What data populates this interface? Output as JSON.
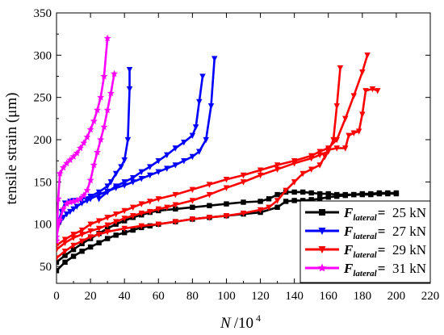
{
  "chart_data": {
    "type": "line",
    "title": "",
    "xlabel": "N",
    "xlabel_suffix": "/10",
    "xlabel_exp": "4",
    "ylabel": "tensile strain (μm)",
    "xlim": [
      0,
      220
    ],
    "ylim": [
      30,
      350
    ],
    "x_ticks": [
      0,
      20,
      40,
      60,
      80,
      100,
      120,
      140,
      160,
      180,
      200,
      220
    ],
    "y_ticks": [
      50,
      100,
      150,
      200,
      250,
      300,
      350
    ],
    "grid": false,
    "legend_position": "lower-right",
    "legend_prefix": "F",
    "legend_sub": "lateral",
    "legend_eq": "=",
    "series": [
      {
        "name": "25 kN",
        "color": "#000000",
        "marker": "square",
        "lines": [
          [
            [
              0,
              45
            ],
            [
              5,
              55
            ],
            [
              10,
              62
            ],
            [
              15,
              68
            ],
            [
              20,
              73
            ],
            [
              25,
              78
            ],
            [
              30,
              83
            ],
            [
              35,
              87
            ],
            [
              40,
              90
            ],
            [
              45,
              93
            ],
            [
              50,
              96
            ],
            [
              55,
              98
            ],
            [
              60,
              100
            ],
            [
              70,
              103
            ],
            [
              80,
              106
            ],
            [
              90,
              108
            ],
            [
              100,
              110
            ],
            [
              110,
              112
            ],
            [
              120,
              114
            ],
            [
              130,
              120
            ],
            [
              135,
              127
            ],
            [
              140,
              128
            ],
            [
              145,
              128
            ],
            [
              150,
              129
            ],
            [
              155,
              130
            ],
            [
              160,
              132
            ],
            [
              165,
              133
            ],
            [
              170,
              134
            ],
            [
              175,
              135
            ],
            [
              180,
              136
            ],
            [
              185,
              136
            ],
            [
              190,
              137
            ],
            [
              195,
              137
            ],
            [
              200,
              137
            ]
          ],
          [
            [
              0,
              55
            ],
            [
              5,
              63
            ],
            [
              10,
              70
            ],
            [
              15,
              77
            ],
            [
              20,
              83
            ],
            [
              25,
              89
            ],
            [
              30,
              95
            ],
            [
              35,
              100
            ],
            [
              40,
              104
            ],
            [
              45,
              108
            ],
            [
              50,
              111
            ],
            [
              55,
              114
            ],
            [
              60,
              116
            ],
            [
              70,
              118
            ],
            [
              80,
              120
            ],
            [
              90,
              122
            ],
            [
              100,
              124
            ],
            [
              110,
              126
            ],
            [
              120,
              127
            ],
            [
              125,
              130
            ],
            [
              130,
              135
            ],
            [
              135,
              138
            ],
            [
              140,
              138
            ],
            [
              145,
              138
            ],
            [
              150,
              137
            ],
            [
              155,
              136
            ],
            [
              160,
              136
            ],
            [
              165,
              135
            ],
            [
              170,
              135
            ],
            [
              175,
              135
            ],
            [
              180,
              135
            ],
            [
              185,
              135
            ],
            [
              190,
              136
            ],
            [
              195,
              136
            ],
            [
              200,
              136
            ]
          ]
        ]
      },
      {
        "name": "27 kN",
        "color": "#0000ff",
        "marker": "triangle-down",
        "lines": [
          [
            [
              0,
              95
            ],
            [
              2,
              102
            ],
            [
              4,
              108
            ],
            [
              6,
              112
            ],
            [
              8,
              115
            ],
            [
              10,
              118
            ],
            [
              12,
              121
            ],
            [
              15,
              125
            ],
            [
              18,
              128
            ],
            [
              20,
              130
            ],
            [
              25,
              135
            ],
            [
              30,
              139
            ],
            [
              35,
              143
            ],
            [
              40,
              146
            ],
            [
              45,
              150
            ],
            [
              50,
              154
            ],
            [
              55,
              158
            ],
            [
              60,
              162
            ],
            [
              65,
              166
            ],
            [
              70,
              170
            ],
            [
              75,
              175
            ],
            [
              80,
              180
            ],
            [
              84,
              186
            ],
            [
              88,
              200
            ],
            [
              91,
              240
            ],
            [
              93,
              296
            ]
          ],
          [
            [
              0,
              95
            ],
            [
              3,
              115
            ],
            [
              5,
              125
            ],
            [
              8,
              127
            ],
            [
              10,
              128
            ],
            [
              15,
              130
            ],
            [
              20,
              133
            ],
            [
              25,
              138
            ],
            [
              30,
              145
            ],
            [
              32,
              150
            ],
            [
              35,
              160
            ],
            [
              38,
              168
            ],
            [
              40,
              176
            ],
            [
              42,
              200
            ],
            [
              43,
              260
            ],
            [
              43,
              283
            ]
          ],
          [
            [
              25,
              130
            ],
            [
              30,
              138
            ],
            [
              35,
              145
            ],
            [
              40,
              150
            ],
            [
              45,
              155
            ],
            [
              50,
              162
            ],
            [
              55,
              168
            ],
            [
              60,
              175
            ],
            [
              65,
              182
            ],
            [
              70,
              190
            ],
            [
              75,
              197
            ],
            [
              80,
              205
            ],
            [
              82,
              215
            ],
            [
              84,
              245
            ],
            [
              86,
              275
            ]
          ]
        ]
      },
      {
        "name": "29 kN",
        "color": "#ff0000",
        "marker": "triangle-down",
        "lines": [
          [
            [
              0,
              70
            ],
            [
              5,
              78
            ],
            [
              10,
              84
            ],
            [
              15,
              88
            ],
            [
              20,
              92
            ],
            [
              25,
              95
            ],
            [
              30,
              99
            ],
            [
              35,
              103
            ],
            [
              40,
              107
            ],
            [
              45,
              110
            ],
            [
              50,
              113
            ],
            [
              55,
              115
            ],
            [
              60,
              118
            ],
            [
              65,
              120
            ],
            [
              70,
              123
            ],
            [
              80,
              128
            ],
            [
              90,
              135
            ],
            [
              100,
              143
            ],
            [
              110,
              150
            ],
            [
              120,
              158
            ],
            [
              130,
              165
            ],
            [
              140,
              172
            ],
            [
              150,
              178
            ],
            [
              155,
              182
            ],
            [
              160,
              186
            ],
            [
              163,
              200
            ],
            [
              165,
              240
            ],
            [
              167,
              285
            ]
          ],
          [
            [
              0,
              75
            ],
            [
              5,
              82
            ],
            [
              10,
              88
            ],
            [
              15,
              93
            ],
            [
              20,
              100
            ],
            [
              25,
              104
            ],
            [
              30,
              108
            ],
            [
              35,
              112
            ],
            [
              40,
              116
            ],
            [
              45,
              120
            ],
            [
              50,
              124
            ],
            [
              55,
              127
            ],
            [
              60,
              130
            ],
            [
              70,
              135
            ],
            [
              80,
              141
            ],
            [
              90,
              147
            ],
            [
              100,
              153
            ],
            [
              110,
              158
            ],
            [
              120,
              164
            ],
            [
              130,
              170
            ],
            [
              140,
              175
            ],
            [
              150,
              181
            ],
            [
              155,
              186
            ],
            [
              160,
              190
            ],
            [
              165,
              200
            ],
            [
              170,
              225
            ],
            [
              175,
              252
            ],
            [
              180,
              280
            ],
            [
              183,
              300
            ]
          ],
          [
            [
              0,
              60
            ],
            [
              5,
              68
            ],
            [
              10,
              75
            ],
            [
              15,
              80
            ],
            [
              20,
              85
            ],
            [
              25,
              88
            ],
            [
              30,
              91
            ],
            [
              40,
              95
            ],
            [
              50,
              98
            ],
            [
              60,
              100
            ],
            [
              70,
              103
            ],
            [
              80,
              106
            ],
            [
              90,
              108
            ],
            [
              100,
              110
            ],
            [
              110,
              113
            ],
            [
              120,
              117
            ],
            [
              125,
              120
            ],
            [
              130,
              128
            ],
            [
              135,
              140
            ],
            [
              140,
              150
            ],
            [
              145,
              160
            ],
            [
              150,
              165
            ],
            [
              155,
              170
            ],
            [
              158,
              180
            ],
            [
              160,
              188
            ],
            [
              165,
              190
            ],
            [
              170,
              190
            ],
            [
              172,
              205
            ],
            [
              175,
              208
            ],
            [
              178,
              210
            ],
            [
              180,
              230
            ],
            [
              182,
              258
            ],
            [
              186,
              260
            ],
            [
              189,
              258
            ]
          ]
        ]
      },
      {
        "name": "31 kN",
        "color": "#ff00ff",
        "marker": "star",
        "lines": [
          [
            [
              0,
              80
            ],
            [
              1,
              130
            ],
            [
              2,
              160
            ],
            [
              4,
              167
            ],
            [
              6,
              172
            ],
            [
              8,
              176
            ],
            [
              10,
              180
            ],
            [
              12,
              184
            ],
            [
              14,
              190
            ],
            [
              16,
              196
            ],
            [
              18,
              203
            ],
            [
              20,
              212
            ],
            [
              22,
              222
            ],
            [
              24,
              235
            ],
            [
              26,
              250
            ],
            [
              28,
              275
            ],
            [
              30,
              320
            ]
          ],
          [
            [
              0,
              85
            ],
            [
              2,
              105
            ],
            [
              4,
              118
            ],
            [
              6,
              124
            ],
            [
              8,
              126
            ],
            [
              10,
              127
            ],
            [
              12,
              128
            ],
            [
              14,
              130
            ],
            [
              16,
              134
            ],
            [
              18,
              140
            ],
            [
              20,
              152
            ],
            [
              22,
              170
            ],
            [
              24,
              185
            ],
            [
              26,
              200
            ],
            [
              28,
              215
            ],
            [
              30,
              235
            ],
            [
              32,
              255
            ],
            [
              34,
              278
            ]
          ]
        ]
      }
    ]
  }
}
